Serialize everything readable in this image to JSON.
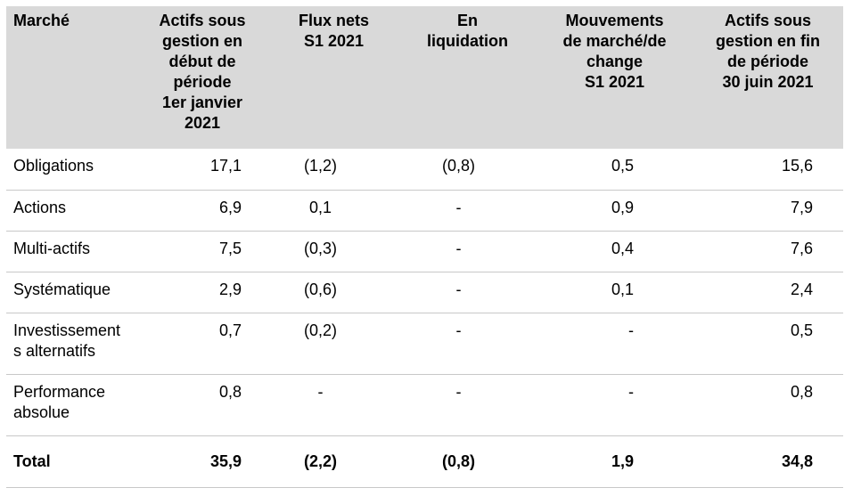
{
  "table": {
    "headers": [
      [
        "Marché"
      ],
      [
        "Actifs sous",
        "gestion en",
        "début de",
        "période",
        "1er janvier",
        "2021"
      ],
      [
        "Flux nets",
        "S1 2021"
      ],
      [
        "En",
        "liquidation"
      ],
      [
        "Mouvements",
        "de marché/de",
        "change",
        "S1 2021"
      ],
      [
        "Actifs sous",
        "gestion en fin",
        "de période",
        "30 juin 2021"
      ]
    ],
    "rows": [
      {
        "label": [
          "Obligations"
        ],
        "values": [
          "17,1",
          "(1,2)",
          "(0,8)",
          "0,5",
          "15,6"
        ]
      },
      {
        "label": [
          "Actions"
        ],
        "values": [
          "6,9",
          "0,1",
          "-",
          "0,9",
          "7,9"
        ]
      },
      {
        "label": [
          "Multi-actifs"
        ],
        "values": [
          "7,5",
          "(0,3)",
          "-",
          "0,4",
          "7,6"
        ]
      },
      {
        "label": [
          "Systématique"
        ],
        "values": [
          "2,9",
          "(0,6)",
          "-",
          "0,1",
          "2,4"
        ]
      },
      {
        "label": [
          "Investissement",
          "s alternatifs"
        ],
        "values": [
          "0,7",
          "(0,2)",
          "-",
          "-",
          "0,5"
        ]
      },
      {
        "label": [
          "Performance",
          "absolue"
        ],
        "values": [
          "0,8",
          "-",
          "-",
          "-",
          "0,8"
        ]
      }
    ],
    "total": {
      "label": "Total",
      "values": [
        "35,9",
        "(2,2)",
        "(0,8)",
        "1,9",
        "34,8"
      ]
    }
  }
}
